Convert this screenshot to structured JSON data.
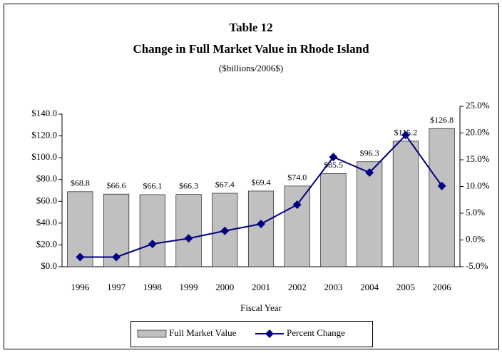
{
  "chart_data": {
    "type": "bar",
    "title": "Table 12",
    "subtitle": "Change in Full Market Value in Rhode Island",
    "note": "($billions/2006$)",
    "x_label": "Fiscal Year",
    "categories": [
      "1996",
      "1997",
      "1998",
      "1999",
      "2000",
      "2001",
      "2002",
      "2003",
      "2004",
      "2005",
      "2006"
    ],
    "series": [
      {
        "name": "Full Market Value",
        "type": "bar",
        "color": "#c0c0c0",
        "values": [
          68.8,
          66.6,
          66.1,
          66.3,
          67.4,
          69.4,
          74.0,
          85.5,
          96.3,
          115.2,
          126.8
        ],
        "value_labels": [
          "$68.8",
          "$66.6",
          "$66.1",
          "$66.3",
          "$67.4",
          "$69.4",
          "$74.0",
          "$85.5",
          "$96.3",
          "$115.2",
          "$126.8"
        ]
      },
      {
        "name": "Percent Change",
        "type": "line",
        "axis": "y2",
        "color": "#000080",
        "values": [
          -3.2,
          -3.2,
          -0.75,
          0.3,
          1.7,
          3.0,
          6.6,
          15.5,
          12.6,
          19.6,
          10.1
        ]
      }
    ],
    "ylim": [
      0,
      140
    ],
    "yticks": [
      {
        "value": 0,
        "label": "$0.0"
      },
      {
        "value": 20,
        "label": "$20.0"
      },
      {
        "value": 40,
        "label": "$40.0"
      },
      {
        "value": 60,
        "label": "$60.0"
      },
      {
        "value": 80,
        "label": "$80.0"
      },
      {
        "value": 100,
        "label": "$100.0"
      },
      {
        "value": 120,
        "label": "$120.0"
      },
      {
        "value": 140,
        "label": "$140.0"
      }
    ],
    "y2lim": [
      -5,
      25
    ],
    "y2ticks": [
      {
        "value": -5,
        "label": "-5.0%"
      },
      {
        "value": 0,
        "label": "0.0%"
      },
      {
        "value": 5,
        "label": "5.0%"
      },
      {
        "value": 10,
        "label": "10.0%"
      },
      {
        "value": 15,
        "label": "15.0%"
      },
      {
        "value": 20,
        "label": "20.0%"
      },
      {
        "value": 25,
        "label": "25.0%"
      }
    ],
    "legend": "bottom"
  }
}
